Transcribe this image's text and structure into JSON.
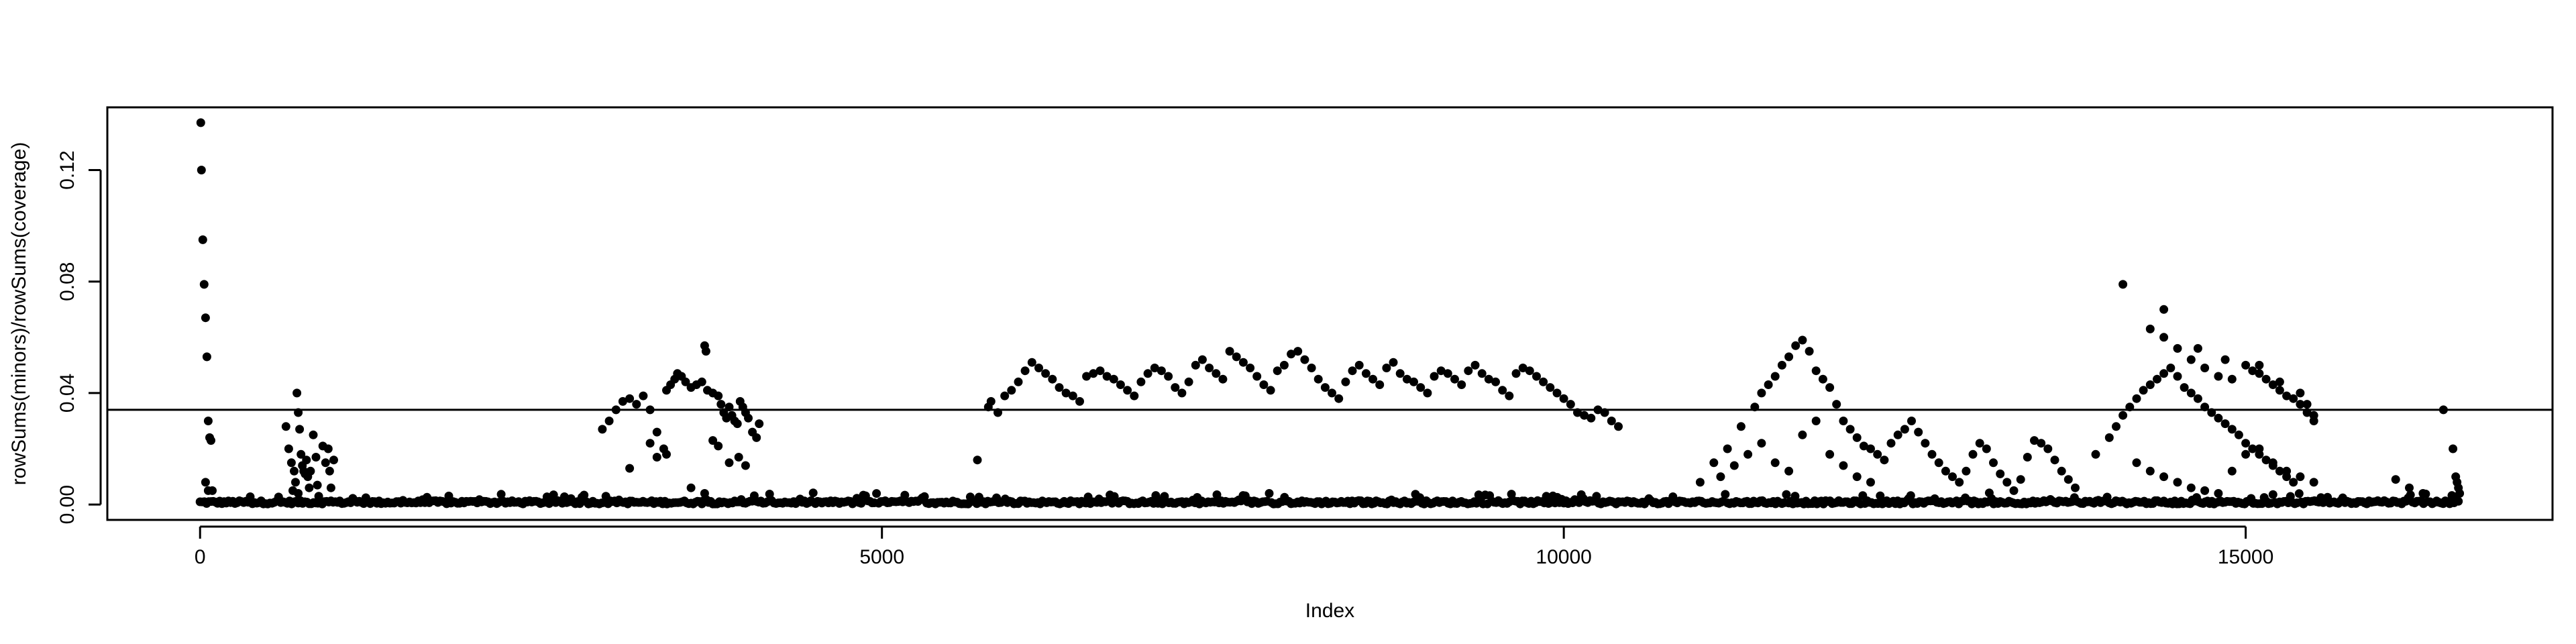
{
  "chart_data": {
    "type": "scatter",
    "title": "",
    "xlabel": "Index",
    "ylabel": "rowSums(minors)/rowSums(coverage)",
    "xlim": [
      -680,
      17250
    ],
    "ylim": [
      -0.0055,
      0.1425
    ],
    "x_ticks": [
      0,
      5000,
      10000,
      15000
    ],
    "x_tick_labels": [
      "0",
      "5000",
      "10000",
      "15000"
    ],
    "y_ticks": [
      0.0,
      0.04,
      0.08,
      0.12
    ],
    "y_tick_labels": [
      "0.00",
      "0.04",
      "0.08",
      "0.12"
    ],
    "grid": false,
    "legend": "none",
    "point_color": "#000000",
    "hline": {
      "y": 0.034,
      "color": "#000000"
    },
    "n_points": 16569,
    "baseline": {
      "x_range": [
        0,
        16569
      ],
      "typical_y": 0.001,
      "max_y": 0.004
    },
    "points": [
      [
        5,
        0.137
      ],
      [
        10,
        0.12
      ],
      [
        20,
        0.095
      ],
      [
        30,
        0.079
      ],
      [
        40,
        0.067
      ],
      [
        50,
        0.053
      ],
      [
        60,
        0.03
      ],
      [
        70,
        0.024
      ],
      [
        80,
        0.023
      ],
      [
        40,
        0.008
      ],
      [
        60,
        0.005
      ],
      [
        90,
        0.005
      ],
      [
        630,
        0.028
      ],
      [
        650,
        0.02
      ],
      [
        670,
        0.015
      ],
      [
        690,
        0.012
      ],
      [
        700,
        0.008
      ],
      [
        710,
        0.04
      ],
      [
        720,
        0.033
      ],
      [
        730,
        0.027
      ],
      [
        740,
        0.018
      ],
      [
        750,
        0.014
      ],
      [
        760,
        0.012
      ],
      [
        770,
        0.011
      ],
      [
        780,
        0.016
      ],
      [
        790,
        0.01
      ],
      [
        800,
        0.006
      ],
      [
        810,
        0.012
      ],
      [
        830,
        0.025
      ],
      [
        850,
        0.017
      ],
      [
        860,
        0.007
      ],
      [
        870,
        0.003
      ],
      [
        900,
        0.021
      ],
      [
        920,
        0.015
      ],
      [
        940,
        0.02
      ],
      [
        950,
        0.012
      ],
      [
        960,
        0.006
      ],
      [
        980,
        0.016
      ],
      [
        680,
        0.005
      ],
      [
        720,
        0.004
      ],
      [
        2950,
        0.027
      ],
      [
        3000,
        0.03
      ],
      [
        3050,
        0.034
      ],
      [
        3100,
        0.037
      ],
      [
        3150,
        0.038
      ],
      [
        3200,
        0.036
      ],
      [
        3250,
        0.039
      ],
      [
        3300,
        0.034
      ],
      [
        3350,
        0.026
      ],
      [
        3400,
        0.02
      ],
      [
        3420,
        0.041
      ],
      [
        3450,
        0.043
      ],
      [
        3480,
        0.045
      ],
      [
        3500,
        0.047
      ],
      [
        3530,
        0.046
      ],
      [
        3560,
        0.044
      ],
      [
        3600,
        0.042
      ],
      [
        3640,
        0.043
      ],
      [
        3680,
        0.044
      ],
      [
        3720,
        0.041
      ],
      [
        3760,
        0.04
      ],
      [
        3800,
        0.039
      ],
      [
        3820,
        0.036
      ],
      [
        3840,
        0.033
      ],
      [
        3860,
        0.031
      ],
      [
        3880,
        0.035
      ],
      [
        3900,
        0.032
      ],
      [
        3920,
        0.03
      ],
      [
        3940,
        0.029
      ],
      [
        3960,
        0.037
      ],
      [
        3980,
        0.035
      ],
      [
        4000,
        0.033
      ],
      [
        4020,
        0.031
      ],
      [
        4050,
        0.026
      ],
      [
        4080,
        0.024
      ],
      [
        4100,
        0.029
      ],
      [
        3700,
        0.057
      ],
      [
        3710,
        0.055
      ],
      [
        3760,
        0.023
      ],
      [
        3800,
        0.021
      ],
      [
        3880,
        0.015
      ],
      [
        3950,
        0.017
      ],
      [
        4000,
        0.014
      ],
      [
        3150,
        0.013
      ],
      [
        3300,
        0.022
      ],
      [
        3350,
        0.017
      ],
      [
        3420,
        0.018
      ],
      [
        3600,
        0.006
      ],
      [
        3700,
        0.004
      ],
      [
        5700,
        0.016
      ],
      [
        5780,
        0.035
      ],
      [
        5800,
        0.037
      ],
      [
        5850,
        0.033
      ],
      [
        5900,
        0.039
      ],
      [
        5950,
        0.041
      ],
      [
        6000,
        0.044
      ],
      [
        6050,
        0.048
      ],
      [
        6100,
        0.051
      ],
      [
        6150,
        0.049
      ],
      [
        6200,
        0.047
      ],
      [
        6250,
        0.045
      ],
      [
        6300,
        0.042
      ],
      [
        6350,
        0.04
      ],
      [
        6400,
        0.039
      ],
      [
        6450,
        0.037
      ],
      [
        6500,
        0.046
      ],
      [
        6550,
        0.047
      ],
      [
        6600,
        0.048
      ],
      [
        6650,
        0.046
      ],
      [
        6700,
        0.045
      ],
      [
        6750,
        0.043
      ],
      [
        6800,
        0.041
      ],
      [
        6850,
        0.039
      ],
      [
        6900,
        0.044
      ],
      [
        6950,
        0.047
      ],
      [
        7000,
        0.049
      ],
      [
        7050,
        0.048
      ],
      [
        7100,
        0.046
      ],
      [
        7150,
        0.042
      ],
      [
        7200,
        0.04
      ],
      [
        7250,
        0.044
      ],
      [
        7300,
        0.05
      ],
      [
        7350,
        0.052
      ],
      [
        7400,
        0.049
      ],
      [
        7450,
        0.047
      ],
      [
        7500,
        0.045
      ],
      [
        7550,
        0.055
      ],
      [
        7600,
        0.053
      ],
      [
        7650,
        0.051
      ],
      [
        7700,
        0.049
      ],
      [
        7750,
        0.046
      ],
      [
        7800,
        0.043
      ],
      [
        7850,
        0.041
      ],
      [
        7900,
        0.048
      ],
      [
        7950,
        0.05
      ],
      [
        8000,
        0.054
      ],
      [
        8050,
        0.055
      ],
      [
        8100,
        0.052
      ],
      [
        8150,
        0.049
      ],
      [
        8200,
        0.045
      ],
      [
        8250,
        0.042
      ],
      [
        8300,
        0.04
      ],
      [
        8350,
        0.038
      ],
      [
        8400,
        0.044
      ],
      [
        8450,
        0.048
      ],
      [
        8500,
        0.05
      ],
      [
        8550,
        0.047
      ],
      [
        8600,
        0.045
      ],
      [
        8650,
        0.043
      ],
      [
        8700,
        0.049
      ],
      [
        8750,
        0.051
      ],
      [
        8800,
        0.047
      ],
      [
        8850,
        0.045
      ],
      [
        8900,
        0.044
      ],
      [
        8950,
        0.042
      ],
      [
        9000,
        0.04
      ],
      [
        9050,
        0.046
      ],
      [
        9100,
        0.048
      ],
      [
        9150,
        0.047
      ],
      [
        9200,
        0.045
      ],
      [
        9250,
        0.043
      ],
      [
        9300,
        0.048
      ],
      [
        9350,
        0.05
      ],
      [
        9400,
        0.047
      ],
      [
        9450,
        0.045
      ],
      [
        9500,
        0.044
      ],
      [
        9550,
        0.041
      ],
      [
        9600,
        0.039
      ],
      [
        9650,
        0.047
      ],
      [
        9700,
        0.049
      ],
      [
        9750,
        0.048
      ],
      [
        9800,
        0.046
      ],
      [
        9850,
        0.044
      ],
      [
        9900,
        0.042
      ],
      [
        9950,
        0.04
      ],
      [
        10000,
        0.038
      ],
      [
        10050,
        0.036
      ],
      [
        10100,
        0.033
      ],
      [
        10150,
        0.032
      ],
      [
        10200,
        0.031
      ],
      [
        10250,
        0.034
      ],
      [
        10300,
        0.033
      ],
      [
        10350,
        0.03
      ],
      [
        10400,
        0.028
      ],
      [
        11000,
        0.008
      ],
      [
        11100,
        0.015
      ],
      [
        11200,
        0.02
      ],
      [
        11300,
        0.028
      ],
      [
        11400,
        0.035
      ],
      [
        11450,
        0.04
      ],
      [
        11500,
        0.043
      ],
      [
        11550,
        0.046
      ],
      [
        11600,
        0.05
      ],
      [
        11650,
        0.053
      ],
      [
        11700,
        0.057
      ],
      [
        11750,
        0.059
      ],
      [
        11800,
        0.055
      ],
      [
        11850,
        0.048
      ],
      [
        11900,
        0.045
      ],
      [
        11950,
        0.042
      ],
      [
        12000,
        0.036
      ],
      [
        12050,
        0.03
      ],
      [
        12100,
        0.027
      ],
      [
        12150,
        0.024
      ],
      [
        12200,
        0.021
      ],
      [
        12250,
        0.02
      ],
      [
        12300,
        0.018
      ],
      [
        12350,
        0.016
      ],
      [
        12400,
        0.022
      ],
      [
        12450,
        0.025
      ],
      [
        12500,
        0.027
      ],
      [
        12550,
        0.03
      ],
      [
        12600,
        0.026
      ],
      [
        12650,
        0.022
      ],
      [
        12700,
        0.018
      ],
      [
        12750,
        0.015
      ],
      [
        12800,
        0.012
      ],
      [
        12850,
        0.01
      ],
      [
        12900,
        0.008
      ],
      [
        12950,
        0.012
      ],
      [
        13000,
        0.018
      ],
      [
        13050,
        0.022
      ],
      [
        13100,
        0.02
      ],
      [
        13150,
        0.015
      ],
      [
        13200,
        0.011
      ],
      [
        13250,
        0.008
      ],
      [
        13300,
        0.005
      ],
      [
        13350,
        0.009
      ],
      [
        13400,
        0.017
      ],
      [
        13450,
        0.023
      ],
      [
        13500,
        0.022
      ],
      [
        13550,
        0.02
      ],
      [
        13600,
        0.016
      ],
      [
        13650,
        0.012
      ],
      [
        13700,
        0.009
      ],
      [
        13750,
        0.006
      ],
      [
        11150,
        0.01
      ],
      [
        11250,
        0.014
      ],
      [
        11350,
        0.018
      ],
      [
        11450,
        0.022
      ],
      [
        11550,
        0.015
      ],
      [
        11650,
        0.012
      ],
      [
        11750,
        0.025
      ],
      [
        11850,
        0.03
      ],
      [
        11950,
        0.018
      ],
      [
        12050,
        0.014
      ],
      [
        12150,
        0.01
      ],
      [
        12250,
        0.008
      ],
      [
        13900,
        0.018
      ],
      [
        14000,
        0.024
      ],
      [
        14050,
        0.028
      ],
      [
        14100,
        0.032
      ],
      [
        14150,
        0.035
      ],
      [
        14200,
        0.038
      ],
      [
        14250,
        0.041
      ],
      [
        14300,
        0.043
      ],
      [
        14350,
        0.045
      ],
      [
        14400,
        0.047
      ],
      [
        14450,
        0.049
      ],
      [
        14500,
        0.046
      ],
      [
        14550,
        0.042
      ],
      [
        14600,
        0.04
      ],
      [
        14650,
        0.038
      ],
      [
        14700,
        0.035
      ],
      [
        14750,
        0.033
      ],
      [
        14800,
        0.031
      ],
      [
        14850,
        0.029
      ],
      [
        14900,
        0.027
      ],
      [
        14950,
        0.025
      ],
      [
        15000,
        0.022
      ],
      [
        15050,
        0.02
      ],
      [
        15100,
        0.018
      ],
      [
        15150,
        0.016
      ],
      [
        15200,
        0.014
      ],
      [
        15250,
        0.012
      ],
      [
        15300,
        0.01
      ],
      [
        15350,
        0.008
      ],
      [
        14100,
        0.079
      ],
      [
        14300,
        0.063
      ],
      [
        14400,
        0.06
      ],
      [
        14500,
        0.056
      ],
      [
        14600,
        0.052
      ],
      [
        14700,
        0.049
      ],
      [
        14800,
        0.046
      ],
      [
        14900,
        0.045
      ],
      [
        15000,
        0.05
      ],
      [
        15050,
        0.048
      ],
      [
        15100,
        0.047
      ],
      [
        15150,
        0.045
      ],
      [
        15200,
        0.043
      ],
      [
        15250,
        0.041
      ],
      [
        15300,
        0.039
      ],
      [
        15350,
        0.038
      ],
      [
        15400,
        0.036
      ],
      [
        15450,
        0.033
      ],
      [
        15500,
        0.03
      ],
      [
        14400,
        0.07
      ],
      [
        14650,
        0.056
      ],
      [
        14850,
        0.052
      ],
      [
        15100,
        0.05
      ],
      [
        15250,
        0.044
      ],
      [
        15400,
        0.04
      ],
      [
        15450,
        0.036
      ],
      [
        15500,
        0.032
      ],
      [
        14200,
        0.015
      ],
      [
        14300,
        0.012
      ],
      [
        14400,
        0.01
      ],
      [
        14500,
        0.008
      ],
      [
        14600,
        0.006
      ],
      [
        14700,
        0.005
      ],
      [
        14800,
        0.004
      ],
      [
        14900,
        0.012
      ],
      [
        15000,
        0.018
      ],
      [
        15100,
        0.02
      ],
      [
        15200,
        0.015
      ],
      [
        15300,
        0.012
      ],
      [
        15400,
        0.01
      ],
      [
        15500,
        0.008
      ],
      [
        16450,
        0.034
      ],
      [
        16520,
        0.02
      ],
      [
        16540,
        0.01
      ],
      [
        16550,
        0.008
      ],
      [
        16560,
        0.006
      ],
      [
        16569,
        0.004
      ],
      [
        16100,
        0.009
      ],
      [
        16200,
        0.006
      ],
      [
        16300,
        0.004
      ]
    ]
  }
}
